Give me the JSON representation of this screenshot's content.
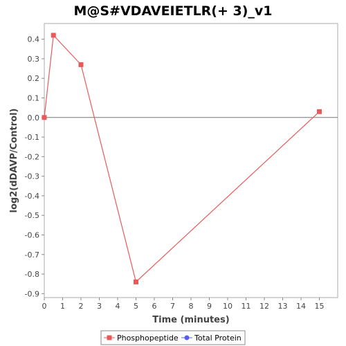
{
  "chart_data": {
    "type": "line",
    "title": "M@S#VDAVEIETLR(+ 3)_v1",
    "xlabel": "Time (minutes)",
    "ylabel": "log2(dDAVP/Control)",
    "xlim": [
      0,
      16
    ],
    "ylim": [
      -0.92,
      0.48
    ],
    "x_ticks": [
      0,
      1,
      2,
      3,
      4,
      5,
      6,
      7,
      8,
      9,
      10,
      11,
      12,
      13,
      14,
      15
    ],
    "y_ticks": [
      0.4,
      0.3,
      0.2,
      0.1,
      0.0,
      -0.1,
      -0.2,
      -0.3,
      -0.4,
      -0.5,
      -0.6,
      -0.7,
      -0.8,
      -0.9
    ],
    "y_tick_labels": [
      "0.4",
      "0.3",
      "0.2",
      "0.1",
      "0.0",
      "-0.1",
      "-0.2",
      "-0.3",
      "-0.4",
      "-0.5",
      "-0.6",
      "-0.7",
      "-0.8",
      "-0.9"
    ],
    "zero_line": true,
    "grid": false,
    "legend_position": "bottom",
    "series": [
      {
        "name": "Phosphopeptide",
        "color": "#e8595a",
        "marker": "square",
        "x": [
          0,
          0.5,
          2,
          5,
          15
        ],
        "y": [
          0.0,
          0.42,
          0.27,
          -0.84,
          0.03
        ]
      },
      {
        "name": "Total Protein",
        "color": "#5b5bf0",
        "marker": "circle",
        "x": [],
        "y": []
      }
    ]
  }
}
